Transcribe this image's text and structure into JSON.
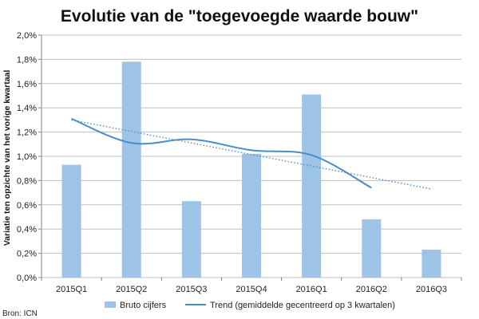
{
  "chart_data": {
    "type": "bar",
    "title": "Evolutie van de \"toegevoegde waarde bouw\"",
    "xlabel": "",
    "ylabel": "Variatie ten opzichte van het vorige kwartaal",
    "categories": [
      "2015Q1",
      "2015Q2",
      "2015Q3",
      "2015Q4",
      "2016Q1",
      "2016Q2",
      "2016Q3"
    ],
    "ylim": [
      0,
      2.0
    ],
    "yticks": [
      0,
      0.2,
      0.4,
      0.6,
      0.8,
      1.0,
      1.2,
      1.4,
      1.6,
      1.8,
      2.0
    ],
    "ytick_labels": [
      "0,0%",
      "0,2%",
      "0,4%",
      "0,6%",
      "0,8%",
      "1,0%",
      "1,2%",
      "1,4%",
      "1,6%",
      "1,8%",
      "2,0%"
    ],
    "grid": true,
    "legend_position": "bottom",
    "series": [
      {
        "name": "Bruto cijfers",
        "type": "bar",
        "color": "#9dc3e6",
        "values": [
          0.93,
          1.78,
          0.63,
          1.02,
          1.51,
          0.48,
          0.23
        ]
      },
      {
        "name": "Trend (gemiddelde gecentreerd op 3 kwartalen)",
        "type": "line",
        "color": "#4a8cc7",
        "values": [
          1.31,
          1.11,
          1.14,
          1.05,
          1.01,
          0.74,
          null
        ]
      },
      {
        "type": "linear-trendline",
        "color": "#4a8cc7",
        "style": "dotted",
        "values": [
          1.3,
          1.205,
          1.11,
          1.015,
          0.92,
          0.825,
          0.73
        ]
      }
    ]
  },
  "source": "Bron: ICN"
}
